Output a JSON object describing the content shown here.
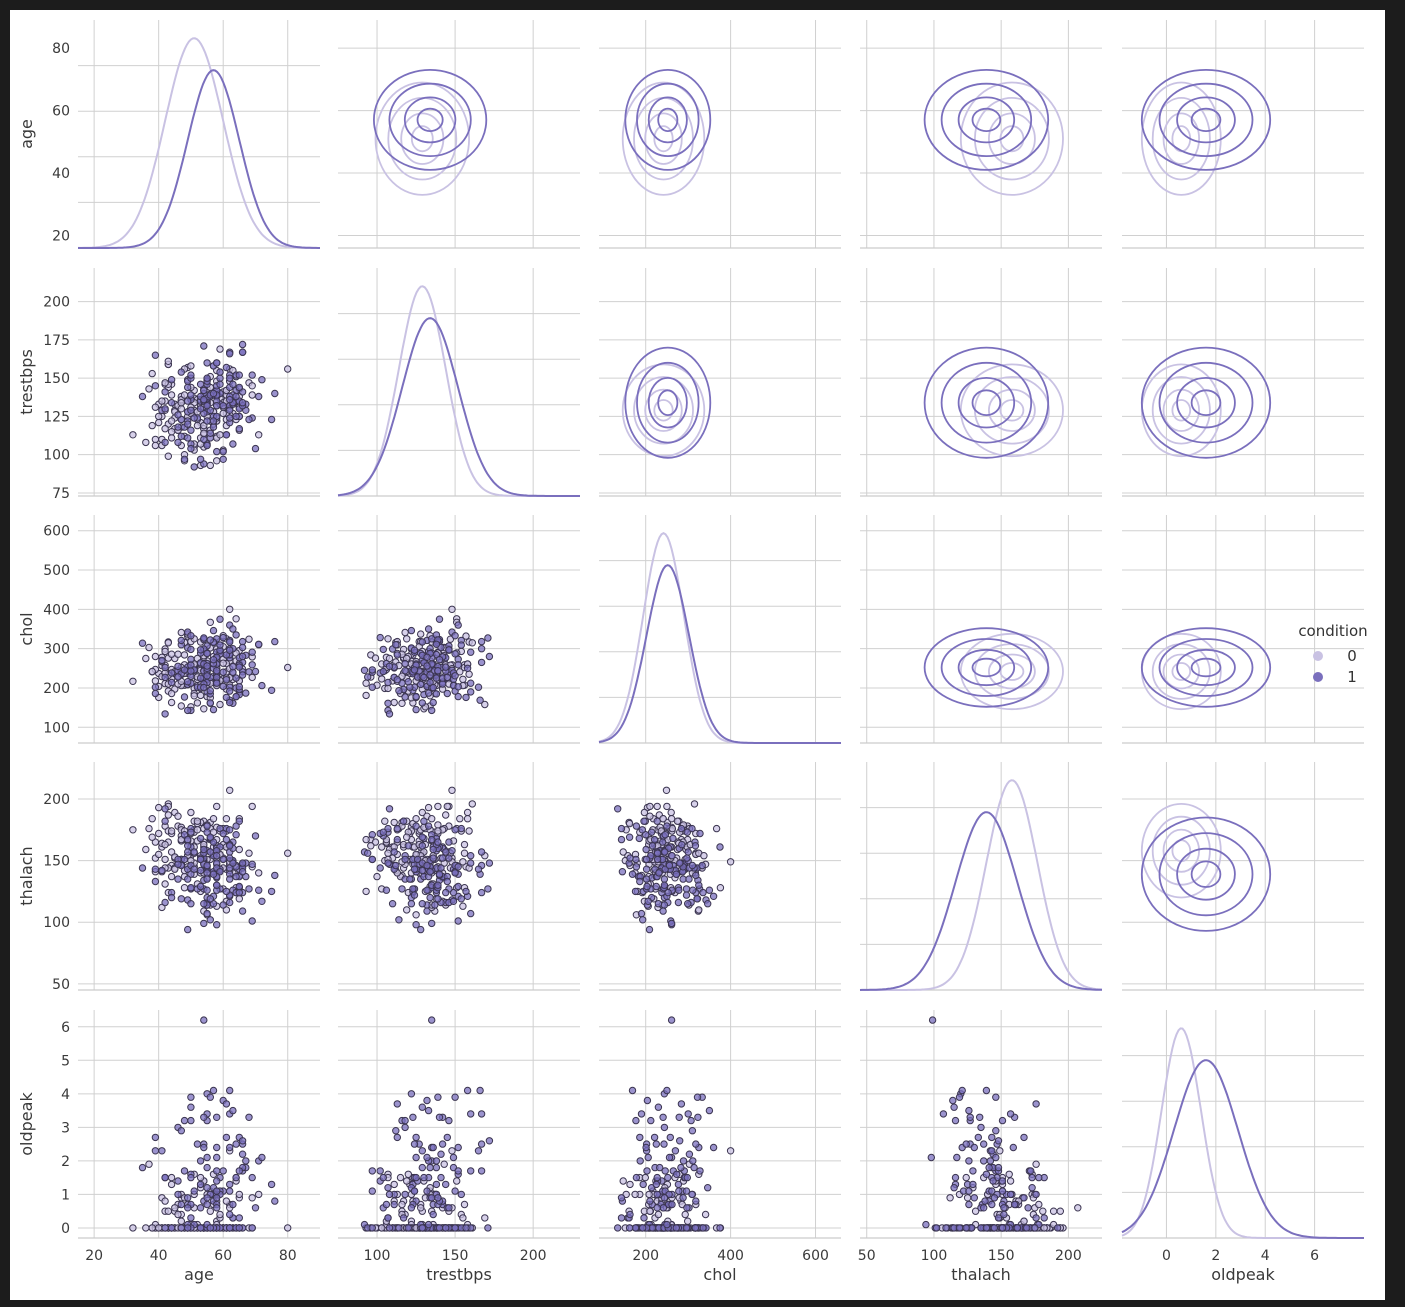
{
  "chart_data": {
    "type": "pairplot",
    "hue": "condition",
    "legend": {
      "title": "condition",
      "placement": "right",
      "entries": [
        {
          "label": "0",
          "color": "#c9c2e3"
        },
        {
          "label": "1",
          "color": "#7a6fbd"
        }
      ]
    },
    "colors": {
      "class0": "#c9c2e3",
      "class1": "#7a6fbd",
      "grid": "#d0d0d0",
      "scatter_edge": "#3b3550"
    },
    "variables": [
      {
        "name": "age",
        "lim": [
          15,
          90
        ],
        "ticks": [
          20,
          40,
          60,
          80
        ],
        "ylim": [
          16,
          89
        ],
        "yticks": [
          20,
          40,
          60,
          80
        ],
        "mean": [
          51,
          57
        ],
        "sd": [
          9,
          8
        ]
      },
      {
        "name": "trestbps",
        "lim": [
          75,
          230
        ],
        "ticks": [
          100,
          150,
          200
        ],
        "ylim": [
          73,
          222
        ],
        "yticks": [
          75,
          100,
          125,
          150,
          175,
          200
        ],
        "mean": [
          129,
          134
        ],
        "sd": [
          15,
          18
        ]
      },
      {
        "name": "chol",
        "lim": [
          90,
          660
        ],
        "ticks": [
          200,
          400,
          600
        ],
        "ylim": [
          60,
          640
        ],
        "yticks": [
          100,
          200,
          300,
          400,
          500,
          600
        ],
        "mean": [
          242,
          252
        ],
        "sd": [
          48,
          50
        ]
      },
      {
        "name": "thalach",
        "lim": [
          45,
          225
        ],
        "ticks": [
          50,
          100,
          150,
          200
        ],
        "ylim": [
          45,
          230
        ],
        "yticks": [
          50,
          100,
          150,
          200
        ],
        "mean": [
          158,
          139
        ],
        "sd": [
          19,
          23
        ]
      },
      {
        "name": "oldpeak",
        "lim": [
          -1.8,
          8
        ],
        "ticks": [
          0,
          2,
          4,
          6
        ],
        "ylim": [
          -0.3,
          6.5
        ],
        "yticks": [
          0,
          1,
          2,
          3,
          4,
          5,
          6
        ],
        "mean": [
          0.6,
          1.6
        ],
        "sd": [
          0.8,
          1.3
        ]
      }
    ],
    "n_points": 297,
    "diagonal": "kde",
    "upper": "kde_contour",
    "lower": "scatter",
    "grid": true
  }
}
